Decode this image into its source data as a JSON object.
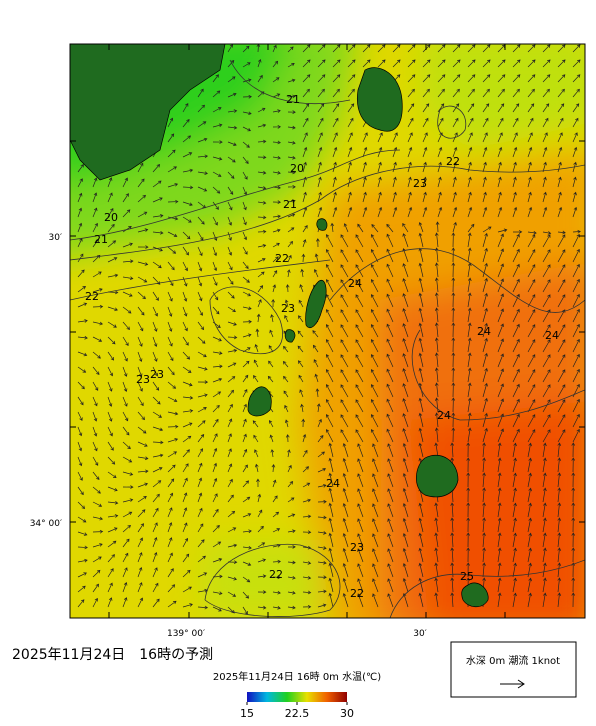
{
  "map": {
    "lat_labels": [
      "30′",
      "34° 00′"
    ],
    "lon_labels": [
      "139° 00′",
      "30′"
    ],
    "contour_labels": [
      "21",
      "20",
      "21",
      "20",
      "21",
      "22",
      "22",
      "23",
      "22",
      "24",
      "23",
      "24",
      "24",
      "23",
      "23",
      "24",
      "24",
      "23",
      "22",
      "22",
      "25"
    ]
  },
  "caption": "2025年11月24日　16時の予測",
  "colorbar": {
    "title": "2025年11月24日 16時 0m 水温(℃)",
    "ticks": [
      15,
      22.5,
      30
    ]
  },
  "legend": {
    "label": "水深 0m 潮流 1knot"
  }
}
